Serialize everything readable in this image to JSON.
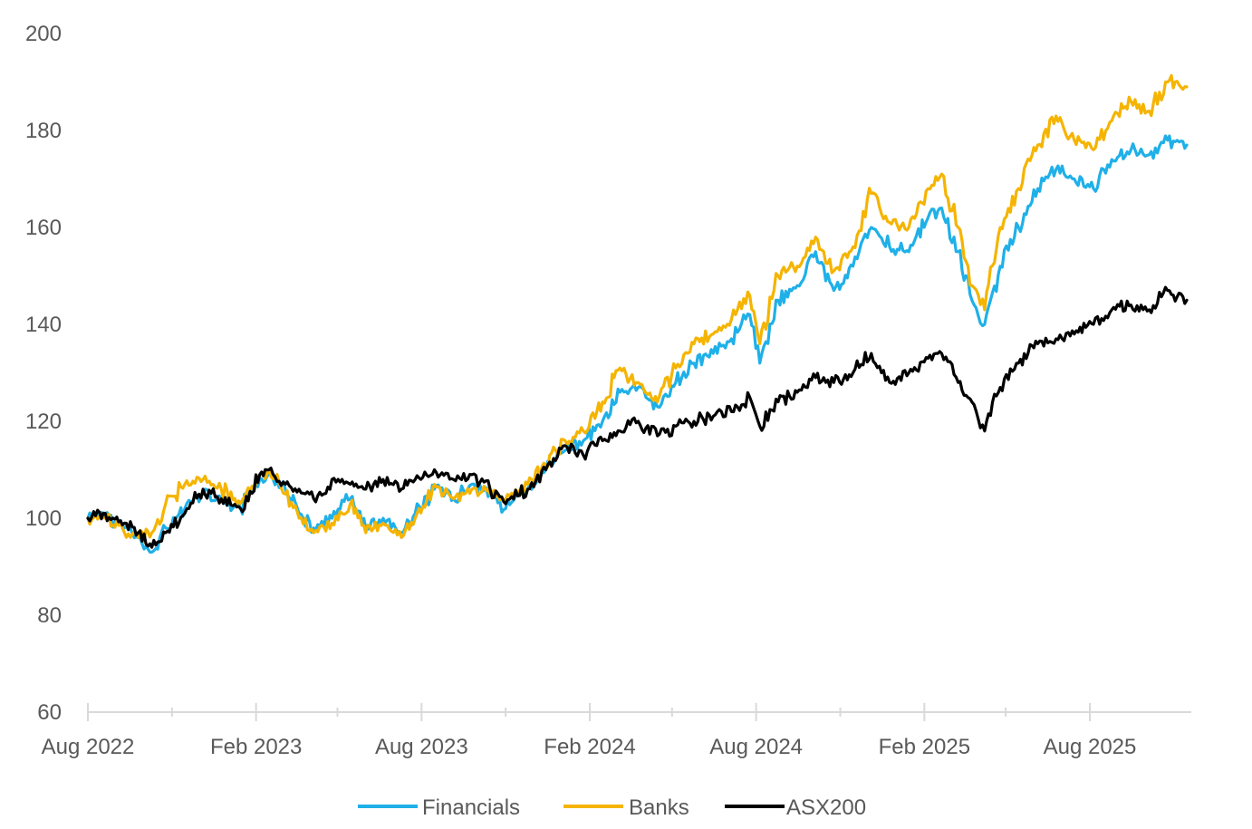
{
  "chart_data": {
    "type": "line",
    "title": "",
    "xlabel": "",
    "ylabel": "",
    "ylim": [
      60,
      200
    ],
    "yticks": [
      60,
      80,
      100,
      120,
      140,
      160,
      180,
      200
    ],
    "ytick_labels": [
      "60",
      "80",
      "100",
      "120",
      "140",
      "160",
      "180",
      "200"
    ],
    "xlim": [
      "2022-08-01",
      "2025-11-20"
    ],
    "xticks": [
      {
        "date": "2022-08-01",
        "label": "Aug 2022"
      },
      {
        "date": "2023-02-01",
        "label": "Feb 2023"
      },
      {
        "date": "2023-08-01",
        "label": "Aug 2023"
      },
      {
        "date": "2024-02-01",
        "label": "Feb 2024"
      },
      {
        "date": "2024-08-01",
        "label": "Aug 2024"
      },
      {
        "date": "2025-02-01",
        "label": "Feb 2025"
      },
      {
        "date": "2025-08-01",
        "label": "Aug 2025"
      }
    ],
    "minor_xticks": [
      "2022-11-01",
      "2023-05-01",
      "2023-11-01",
      "2024-05-01",
      "2024-11-01",
      "2025-05-01"
    ],
    "grid": false,
    "legend": "bottom",
    "series": [
      {
        "name": "Financials",
        "color": "#1fb0e8",
        "points": [
          [
            "2022-08-01",
            100
          ],
          [
            "2022-08-20",
            101
          ],
          [
            "2022-09-10",
            98
          ],
          [
            "2022-09-25",
            96
          ],
          [
            "2022-10-10",
            93
          ],
          [
            "2022-10-25",
            98
          ],
          [
            "2022-11-15",
            102
          ],
          [
            "2022-12-05",
            105
          ],
          [
            "2022-12-25",
            104
          ],
          [
            "2023-01-15",
            102
          ],
          [
            "2023-02-05",
            108
          ],
          [
            "2023-02-15",
            109
          ],
          [
            "2023-03-05",
            106
          ],
          [
            "2023-03-20",
            101
          ],
          [
            "2023-04-05",
            98
          ],
          [
            "2023-04-25",
            100
          ],
          [
            "2023-05-15",
            104
          ],
          [
            "2023-06-01",
            98
          ],
          [
            "2023-06-20",
            100
          ],
          [
            "2023-07-10",
            97
          ],
          [
            "2023-07-25",
            101
          ],
          [
            "2023-08-15",
            106
          ],
          [
            "2023-09-05",
            104
          ],
          [
            "2023-09-25",
            107
          ],
          [
            "2023-10-15",
            105
          ],
          [
            "2023-11-01",
            102
          ],
          [
            "2023-11-25",
            106
          ],
          [
            "2023-12-15",
            110
          ],
          [
            "2024-01-05",
            114
          ],
          [
            "2024-01-25",
            116
          ],
          [
            "2024-02-15",
            120
          ],
          [
            "2024-03-05",
            126
          ],
          [
            "2024-03-25",
            127
          ],
          [
            "2024-04-15",
            123
          ],
          [
            "2024-05-05",
            128
          ],
          [
            "2024-05-25",
            132
          ],
          [
            "2024-06-15",
            134
          ],
          [
            "2024-07-05",
            137
          ],
          [
            "2024-07-25",
            142
          ],
          [
            "2024-08-05",
            132
          ],
          [
            "2024-08-25",
            145
          ],
          [
            "2024-09-15",
            148
          ],
          [
            "2024-10-05",
            155
          ],
          [
            "2024-10-25",
            147
          ],
          [
            "2024-11-15",
            152
          ],
          [
            "2024-12-05",
            160
          ],
          [
            "2024-12-25",
            156
          ],
          [
            "2025-01-15",
            155
          ],
          [
            "2025-02-05",
            162
          ],
          [
            "2025-02-20",
            164
          ],
          [
            "2025-03-10",
            155
          ],
          [
            "2025-03-25",
            145
          ],
          [
            "2025-04-08",
            140
          ],
          [
            "2025-04-25",
            152
          ],
          [
            "2025-05-15",
            160
          ],
          [
            "2025-06-05",
            168
          ],
          [
            "2025-06-25",
            172
          ],
          [
            "2025-07-15",
            170
          ],
          [
            "2025-08-05",
            168
          ],
          [
            "2025-08-25",
            174
          ],
          [
            "2025-09-15",
            176
          ],
          [
            "2025-10-05",
            175
          ],
          [
            "2025-10-25",
            178
          ],
          [
            "2025-11-15",
            177
          ]
        ]
      },
      {
        "name": "Banks",
        "color": "#f5b400",
        "points": [
          [
            "2022-08-01",
            100
          ],
          [
            "2022-08-20",
            100
          ],
          [
            "2022-09-10",
            97
          ],
          [
            "2022-09-25",
            96
          ],
          [
            "2022-10-10",
            97
          ],
          [
            "2022-10-25",
            103
          ],
          [
            "2022-11-15",
            107
          ],
          [
            "2022-12-05",
            108
          ],
          [
            "2022-12-25",
            106
          ],
          [
            "2023-01-15",
            103
          ],
          [
            "2023-02-05",
            109
          ],
          [
            "2023-02-15",
            110
          ],
          [
            "2023-03-05",
            105
          ],
          [
            "2023-03-20",
            100
          ],
          [
            "2023-04-05",
            97
          ],
          [
            "2023-04-25",
            99
          ],
          [
            "2023-05-15",
            103
          ],
          [
            "2023-06-01",
            97
          ],
          [
            "2023-06-20",
            99
          ],
          [
            "2023-07-10",
            96
          ],
          [
            "2023-07-25",
            100
          ],
          [
            "2023-08-15",
            107
          ],
          [
            "2023-09-05",
            104
          ],
          [
            "2023-09-25",
            106
          ],
          [
            "2023-10-15",
            105
          ],
          [
            "2023-11-01",
            104
          ],
          [
            "2023-11-25",
            107
          ],
          [
            "2023-12-15",
            111
          ],
          [
            "2024-01-05",
            116
          ],
          [
            "2024-01-25",
            118
          ],
          [
            "2024-02-15",
            124
          ],
          [
            "2024-03-05",
            131
          ],
          [
            "2024-03-25",
            128
          ],
          [
            "2024-04-15",
            124
          ],
          [
            "2024-05-05",
            131
          ],
          [
            "2024-05-25",
            136
          ],
          [
            "2024-06-15",
            138
          ],
          [
            "2024-07-05",
            141
          ],
          [
            "2024-07-25",
            146
          ],
          [
            "2024-08-05",
            136
          ],
          [
            "2024-08-25",
            150
          ],
          [
            "2024-09-15",
            152
          ],
          [
            "2024-10-05",
            158
          ],
          [
            "2024-10-25",
            151
          ],
          [
            "2024-11-15",
            156
          ],
          [
            "2024-12-05",
            167
          ],
          [
            "2024-12-25",
            161
          ],
          [
            "2025-01-15",
            160
          ],
          [
            "2025-02-05",
            168
          ],
          [
            "2025-02-20",
            171
          ],
          [
            "2025-03-10",
            160
          ],
          [
            "2025-03-25",
            148
          ],
          [
            "2025-04-08",
            143
          ],
          [
            "2025-04-25",
            160
          ],
          [
            "2025-05-15",
            168
          ],
          [
            "2025-06-05",
            177
          ],
          [
            "2025-06-25",
            183
          ],
          [
            "2025-07-15",
            178
          ],
          [
            "2025-08-05",
            176
          ],
          [
            "2025-08-25",
            182
          ],
          [
            "2025-09-15",
            186
          ],
          [
            "2025-10-05",
            184
          ],
          [
            "2025-10-25",
            190
          ],
          [
            "2025-11-15",
            189
          ]
        ]
      },
      {
        "name": "ASX200",
        "color": "#000000",
        "points": [
          [
            "2022-08-01",
            100
          ],
          [
            "2022-08-20",
            101
          ],
          [
            "2022-09-10",
            99
          ],
          [
            "2022-09-25",
            97
          ],
          [
            "2022-10-10",
            94
          ],
          [
            "2022-10-25",
            97
          ],
          [
            "2022-11-15",
            101
          ],
          [
            "2022-12-05",
            106
          ],
          [
            "2022-12-25",
            104
          ],
          [
            "2023-01-15",
            102
          ],
          [
            "2023-02-05",
            109
          ],
          [
            "2023-02-15",
            110
          ],
          [
            "2023-03-05",
            107
          ],
          [
            "2023-03-20",
            106
          ],
          [
            "2023-04-05",
            104
          ],
          [
            "2023-04-25",
            108
          ],
          [
            "2023-05-15",
            107
          ],
          [
            "2023-06-01",
            106
          ],
          [
            "2023-06-20",
            108
          ],
          [
            "2023-07-10",
            106
          ],
          [
            "2023-07-25",
            108
          ],
          [
            "2023-08-15",
            110
          ],
          [
            "2023-09-05",
            108
          ],
          [
            "2023-09-25",
            109
          ],
          [
            "2023-10-15",
            106
          ],
          [
            "2023-11-01",
            103
          ],
          [
            "2023-11-25",
            106
          ],
          [
            "2023-12-15",
            110
          ],
          [
            "2024-01-05",
            115
          ],
          [
            "2024-01-25",
            113
          ],
          [
            "2024-02-15",
            116
          ],
          [
            "2024-03-05",
            118
          ],
          [
            "2024-03-25",
            120
          ],
          [
            "2024-04-15",
            117
          ],
          [
            "2024-05-05",
            119
          ],
          [
            "2024-05-25",
            120
          ],
          [
            "2024-06-15",
            121
          ],
          [
            "2024-07-05",
            122
          ],
          [
            "2024-07-25",
            125
          ],
          [
            "2024-08-05",
            119
          ],
          [
            "2024-08-25",
            124
          ],
          [
            "2024-09-15",
            126
          ],
          [
            "2024-10-05",
            129
          ],
          [
            "2024-10-25",
            128
          ],
          [
            "2024-11-15",
            130
          ],
          [
            "2024-12-05",
            134
          ],
          [
            "2024-12-25",
            128
          ],
          [
            "2025-01-15",
            130
          ],
          [
            "2025-02-05",
            133
          ],
          [
            "2025-02-20",
            134
          ],
          [
            "2025-03-10",
            128
          ],
          [
            "2025-03-25",
            124
          ],
          [
            "2025-04-08",
            118
          ],
          [
            "2025-04-25",
            127
          ],
          [
            "2025-05-15",
            132
          ],
          [
            "2025-06-05",
            136
          ],
          [
            "2025-06-25",
            137
          ],
          [
            "2025-07-15",
            138
          ],
          [
            "2025-08-05",
            140
          ],
          [
            "2025-08-25",
            143
          ],
          [
            "2025-09-15",
            144
          ],
          [
            "2025-10-05",
            143
          ],
          [
            "2025-10-25",
            147
          ],
          [
            "2025-11-15",
            145
          ]
        ]
      }
    ]
  }
}
